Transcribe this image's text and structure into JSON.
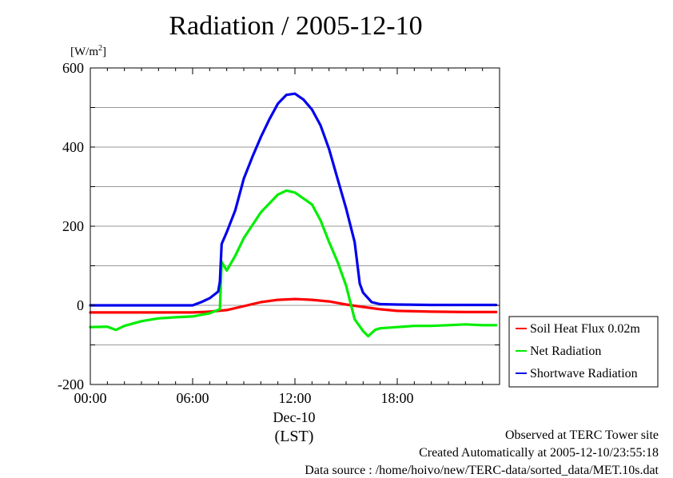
{
  "title": "Radiation / 2005-12-10",
  "ylabel": "[W/m",
  "ylabel_sup": "2",
  "ylabel_close": "]",
  "footer": {
    "line1": "Observed at TERC Tower site",
    "line2": "Created Automatically at 2005-12-10/23:55:18",
    "line3": "Data source : /home/hoivo/new/TERC-data/sorted_data/MET.10s.dat"
  },
  "chart_data": {
    "type": "line",
    "title": "Radiation / 2005-12-10",
    "xlabel": "(LST)",
    "xdate": "Dec-10",
    "ylabel": "[W/m2]",
    "xlim": [
      0,
      24
    ],
    "ylim": [
      -200,
      600
    ],
    "xticks": [
      {
        "v": 0,
        "label": "00:00"
      },
      {
        "v": 6,
        "label": "06:00"
      },
      {
        "v": 12,
        "label": "12:00"
      },
      {
        "v": 18,
        "label": "18:00"
      }
    ],
    "yticks": [
      {
        "v": -200,
        "label": "-200"
      },
      {
        "v": 0,
        "label": "0"
      },
      {
        "v": 200,
        "label": "200"
      },
      {
        "v": 400,
        "label": "400"
      },
      {
        "v": 600,
        "label": "600"
      }
    ],
    "grid": true,
    "legend_position": "right-bottom",
    "series": [
      {
        "name": "Soil Heat Flux 0.02m",
        "color": "#ff0000",
        "points": [
          [
            0,
            -18
          ],
          [
            2,
            -18
          ],
          [
            4,
            -18
          ],
          [
            6,
            -18
          ],
          [
            7,
            -16
          ],
          [
            8,
            -12
          ],
          [
            9,
            -2
          ],
          [
            10,
            8
          ],
          [
            11,
            14
          ],
          [
            12,
            16
          ],
          [
            13,
            14
          ],
          [
            14,
            10
          ],
          [
            15,
            2
          ],
          [
            16,
            -4
          ],
          [
            17,
            -10
          ],
          [
            18,
            -14
          ],
          [
            20,
            -16
          ],
          [
            22,
            -17
          ],
          [
            23.8,
            -17
          ]
        ]
      },
      {
        "name": "Net Radiation",
        "color": "#00ee00",
        "points": [
          [
            0,
            -55
          ],
          [
            1,
            -54
          ],
          [
            1.5,
            -62
          ],
          [
            2,
            -52
          ],
          [
            3,
            -40
          ],
          [
            4,
            -33
          ],
          [
            5,
            -30
          ],
          [
            6,
            -28
          ],
          [
            7,
            -20
          ],
          [
            7.6,
            -10
          ],
          [
            7.7,
            110
          ],
          [
            8,
            88
          ],
          [
            8.5,
            125
          ],
          [
            9,
            170
          ],
          [
            10,
            235
          ],
          [
            11,
            280
          ],
          [
            11.5,
            290
          ],
          [
            12,
            285
          ],
          [
            12.5,
            270
          ],
          [
            13,
            255
          ],
          [
            13.5,
            215
          ],
          [
            14,
            160
          ],
          [
            14.5,
            110
          ],
          [
            15,
            50
          ],
          [
            15.5,
            -35
          ],
          [
            16,
            -65
          ],
          [
            16.3,
            -78
          ],
          [
            16.7,
            -62
          ],
          [
            17,
            -58
          ],
          [
            18,
            -55
          ],
          [
            19,
            -52
          ],
          [
            20,
            -52
          ],
          [
            21,
            -50
          ],
          [
            22,
            -48
          ],
          [
            23,
            -50
          ],
          [
            23.8,
            -50
          ]
        ]
      },
      {
        "name": "Shortwave Radiation",
        "color": "#0000ee",
        "points": [
          [
            0,
            0
          ],
          [
            2,
            0
          ],
          [
            4,
            0
          ],
          [
            5,
            0
          ],
          [
            6,
            0
          ],
          [
            6.5,
            8
          ],
          [
            7,
            18
          ],
          [
            7.5,
            35
          ],
          [
            7.6,
            60
          ],
          [
            7.7,
            155
          ],
          [
            8,
            185
          ],
          [
            8.5,
            240
          ],
          [
            9,
            320
          ],
          [
            9.5,
            375
          ],
          [
            10,
            425
          ],
          [
            10.5,
            470
          ],
          [
            11,
            510
          ],
          [
            11.5,
            532
          ],
          [
            12,
            535
          ],
          [
            12.5,
            520
          ],
          [
            13,
            495
          ],
          [
            13.5,
            455
          ],
          [
            14,
            395
          ],
          [
            14.5,
            320
          ],
          [
            15,
            245
          ],
          [
            15.5,
            160
          ],
          [
            15.8,
            55
          ],
          [
            16,
            32
          ],
          [
            16.5,
            8
          ],
          [
            17,
            3
          ],
          [
            18,
            2
          ],
          [
            20,
            1
          ],
          [
            22,
            1
          ],
          [
            23.8,
            1
          ]
        ]
      }
    ]
  }
}
